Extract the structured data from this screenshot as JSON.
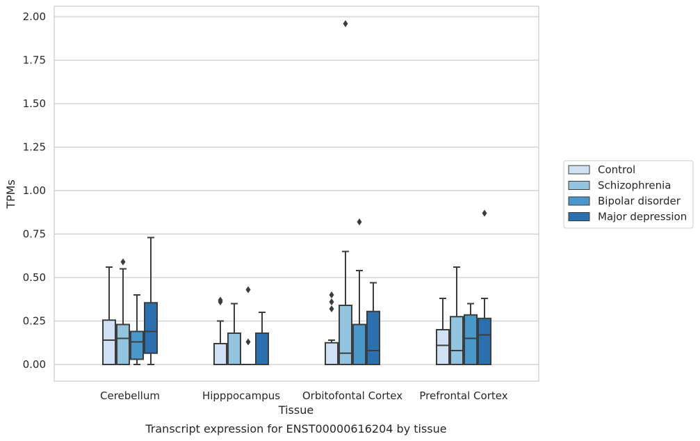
{
  "chart_data": {
    "type": "box",
    "caption": "Transcript expression for ENST00000616204 by tissue",
    "xlabel": "Tissue",
    "ylabel": "TPMs",
    "ylim": [
      -0.095,
      2.06
    ],
    "yticks": [
      "0.00",
      "0.25",
      "0.50",
      "0.75",
      "1.00",
      "1.25",
      "1.50",
      "1.75",
      "2.00"
    ],
    "categories": [
      "Cerebellum",
      "Hipppocampus",
      "Orbitofontal Cortex",
      "Prefrontal Cortex"
    ],
    "grid": "horizontal",
    "legend_position": "right",
    "series": [
      {
        "name": "Control",
        "color": "#cfe1f2",
        "boxes": [
          {
            "whisker_low": 0.0,
            "q1": 0.0,
            "median": 0.14,
            "q3": 0.255,
            "whisker_high": 0.56,
            "outliers": []
          },
          {
            "whisker_low": 0.0,
            "q1": 0.0,
            "median": 0.0,
            "q3": 0.12,
            "whisker_high": 0.25,
            "outliers": [
              0.36,
              0.37
            ]
          },
          {
            "whisker_low": 0.0,
            "q1": 0.0,
            "median": 0.0,
            "q3": 0.125,
            "whisker_high": 0.14,
            "outliers": [
              0.32,
              0.36,
              0.4
            ]
          },
          {
            "whisker_low": 0.0,
            "q1": 0.0,
            "median": 0.11,
            "q3": 0.2,
            "whisker_high": 0.38,
            "outliers": []
          }
        ]
      },
      {
        "name": "Schizophrenia",
        "color": "#93c4de",
        "boxes": [
          {
            "whisker_low": 0.0,
            "q1": 0.0,
            "median": 0.15,
            "q3": 0.23,
            "whisker_high": 0.55,
            "outliers": [
              0.59
            ]
          },
          {
            "whisker_low": 0.0,
            "q1": 0.0,
            "median": 0.0,
            "q3": 0.18,
            "whisker_high": 0.35,
            "outliers": []
          },
          {
            "whisker_low": 0.0,
            "q1": 0.0,
            "median": 0.065,
            "q3": 0.34,
            "whisker_high": 0.65,
            "outliers": [
              1.96
            ]
          },
          {
            "whisker_low": 0.0,
            "q1": 0.0,
            "median": 0.08,
            "q3": 0.275,
            "whisker_high": 0.56,
            "outliers": []
          }
        ]
      },
      {
        "name": "Bipolar disorder",
        "color": "#4a98c9",
        "boxes": [
          {
            "whisker_low": 0.0,
            "q1": 0.03,
            "median": 0.13,
            "q3": 0.19,
            "whisker_high": 0.4,
            "outliers": []
          },
          {
            "whisker_low": 0.0,
            "q1": 0.0,
            "median": 0.0,
            "q3": 0.0,
            "whisker_high": 0.0,
            "outliers": [
              0.13,
              0.43
            ]
          },
          {
            "whisker_low": 0.0,
            "q1": 0.0,
            "median": 0.0,
            "q3": 0.23,
            "whisker_high": 0.54,
            "outliers": [
              0.82
            ]
          },
          {
            "whisker_low": 0.0,
            "q1": 0.0,
            "median": 0.15,
            "q3": 0.285,
            "whisker_high": 0.35,
            "outliers": []
          }
        ]
      },
      {
        "name": "Major depression",
        "color": "#2b6fae",
        "boxes": [
          {
            "whisker_low": 0.0,
            "q1": 0.065,
            "median": 0.19,
            "q3": 0.355,
            "whisker_high": 0.73,
            "outliers": []
          },
          {
            "whisker_low": 0.0,
            "q1": 0.0,
            "median": 0.0,
            "q3": 0.18,
            "whisker_high": 0.3,
            "outliers": []
          },
          {
            "whisker_low": 0.0,
            "q1": 0.0,
            "median": 0.08,
            "q3": 0.305,
            "whisker_high": 0.47,
            "outliers": []
          },
          {
            "whisker_low": 0.0,
            "q1": 0.0,
            "median": 0.17,
            "q3": 0.265,
            "whisker_high": 0.38,
            "outliers": [
              0.87
            ]
          }
        ]
      }
    ]
  }
}
